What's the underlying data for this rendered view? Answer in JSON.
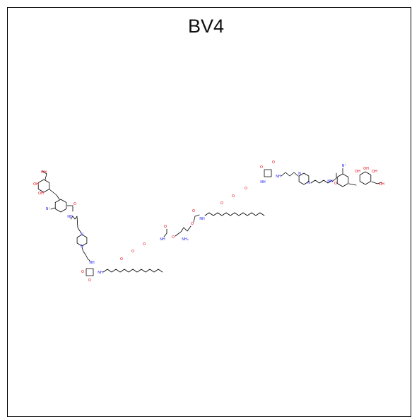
{
  "figure": {
    "title": "BV4"
  },
  "molecule": {
    "description_colors": {
      "bond": "#000000",
      "oxygen": "#e8000b",
      "nitrogen": "#1f1ff0"
    },
    "labels": {
      "nitro_left": "N⁺",
      "nitro_right": "N⁺",
      "amide_nh_left": "NH",
      "amide_nh_right": "NH",
      "amine": "NH₂",
      "hydroxyl": "OH",
      "carbonyl_o": "O",
      "ring_n": "N",
      "ether_o": "O",
      "squarate_nh": "NH"
    }
  }
}
